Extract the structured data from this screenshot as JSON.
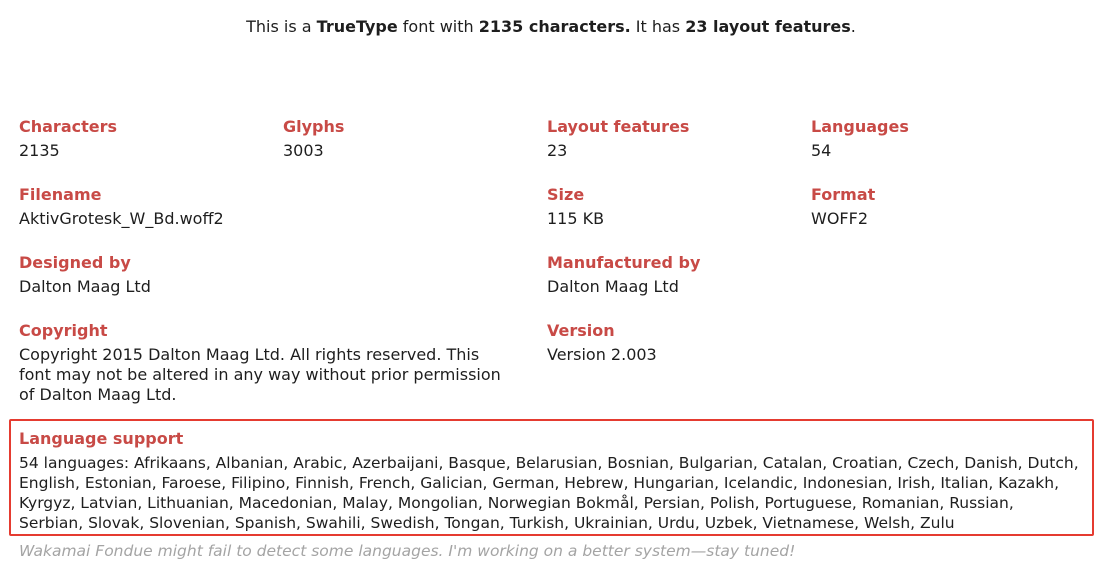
{
  "summary": {
    "prefix": "This is a ",
    "format": "TrueType",
    "middle": " font with ",
    "characters": "2135 characters.",
    "middle2": " It has ",
    "features": "23 layout features",
    "suffix": "."
  },
  "fields": {
    "characters": {
      "label": "Characters",
      "value": "2135"
    },
    "glyphs": {
      "label": "Glyphs",
      "value": "3003"
    },
    "layout_features": {
      "label": "Layout features",
      "value": "23"
    },
    "languages": {
      "label": "Languages",
      "value": "54"
    },
    "filename": {
      "label": "Filename",
      "value": "AktivGrotesk_W_Bd.woff2"
    },
    "size": {
      "label": "Size",
      "value": "115 KB"
    },
    "format": {
      "label": "Format",
      "value": "WOFF2"
    },
    "designed_by": {
      "label": "Designed by",
      "value": "Dalton Maag Ltd"
    },
    "manufactured_by": {
      "label": "Manufactured by",
      "value": "Dalton Maag Ltd"
    },
    "copyright": {
      "label": "Copyright",
      "value": "Copyright 2015 Dalton Maag Ltd. All rights reserved. This font may not be altered in any way without prior permission of Dalton Maag Ltd."
    },
    "version": {
      "label": "Version",
      "value": "Version 2.003"
    }
  },
  "language_support": {
    "label": "Language support",
    "text": "54 languages: Afrikaans, Albanian, Arabic, Azerbaijani, Basque, Belarusian, Bosnian, Bulgarian, Catalan, Croatian, Czech, Danish, Dutch, English, Estonian, Faroese, Filipino, Finnish, French, Galician, German, Hebrew, Hungarian, Icelandic, Indonesian, Irish, Italian, Kazakh, Kyrgyz, Latvian, Lithuanian, Macedonian, Malay, Mongolian, Norwegian Bokmål, Persian, Polish, Portuguese, Romanian, Russian, Serbian, Slovak, Slovenian, Spanish, Swahili, Swedish, Tongan, Turkish, Ukrainian, Urdu, Uzbek, Vietnamese, Welsh, Zulu",
    "note": "Wakamai Fondue might fail to detect some languages. I'm working on a better system—stay tuned!"
  },
  "colors": {
    "label": "#c84a46",
    "highlight_border": "#e53b30",
    "note": "#a4a4a4"
  }
}
